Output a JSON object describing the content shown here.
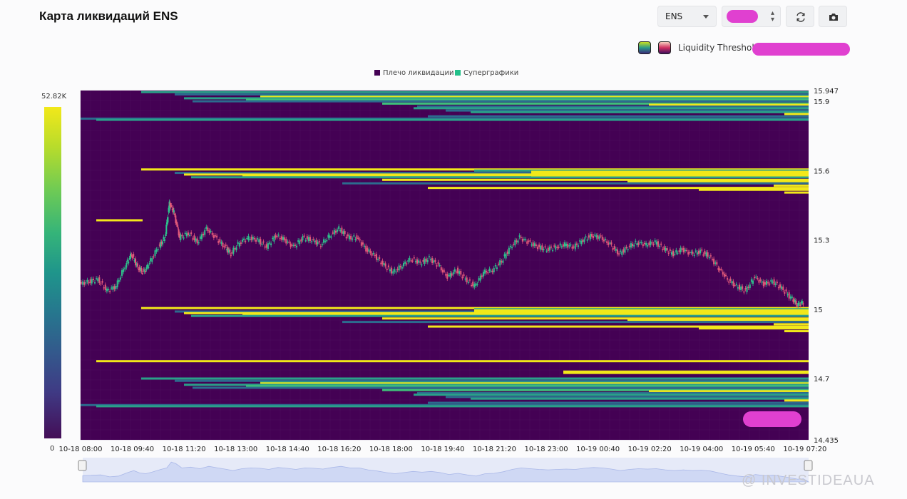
{
  "header": {
    "title": "Карта ликвидаций ENS",
    "symbol_select": "ENS",
    "refresh_icon": "refresh-icon",
    "camera_icon": "camera-icon"
  },
  "legend_panel": {
    "threshold_label": "Liquidity Threshold"
  },
  "colorbar": {
    "max_label": "52.82K",
    "min_label": "0"
  },
  "watermark": "@ INVESTIDEAUA",
  "colors": {
    "background": "#440154",
    "grid": "#56246b",
    "up": "#2ec28c",
    "down": "#e35a7a",
    "high": "#f2e81a",
    "mid": "#2aa089",
    "lowmid": "#2c6b8e"
  },
  "chart_data": {
    "type": "heatmap",
    "legend": [
      {
        "name": "Плечо ликвидации",
        "color": "#440154"
      },
      {
        "name": "Суперграфики",
        "color": "#22c08a"
      }
    ],
    "x_ticks": [
      "10-18 08:00",
      "10-18 09:40",
      "10-18 11:20",
      "10-18 13:00",
      "10-18 14:40",
      "10-18 16:20",
      "10-18 18:00",
      "10-18 19:40",
      "10-18 21:20",
      "10-18 23:00",
      "10-19 00:40",
      "10-19 02:20",
      "10-19 04:00",
      "10-19 05:40",
      "10-19 07:20"
    ],
    "y_ticks": [
      "15.947",
      "15.9",
      "15.6",
      "15.3",
      "15",
      "14.7",
      "14.435"
    ],
    "y_tick_values": [
      15.947,
      15.9,
      15.6,
      15.3,
      15.0,
      14.7,
      14.435
    ],
    "ylim": [
      14.435,
      15.947
    ],
    "x_range_hours": [
      0,
      24.17
    ],
    "price_path": [
      [
        0,
        15.11
      ],
      [
        0.3,
        15.12
      ],
      [
        0.6,
        15.13
      ],
      [
        0.9,
        15.08
      ],
      [
        1.2,
        15.1
      ],
      [
        1.5,
        15.19
      ],
      [
        1.7,
        15.24
      ],
      [
        1.9,
        15.18
      ],
      [
        2.1,
        15.16
      ],
      [
        2.3,
        15.2
      ],
      [
        2.6,
        15.27
      ],
      [
        2.8,
        15.31
      ],
      [
        2.95,
        15.46
      ],
      [
        3.1,
        15.42
      ],
      [
        3.3,
        15.31
      ],
      [
        3.6,
        15.33
      ],
      [
        3.9,
        15.29
      ],
      [
        4.2,
        15.35
      ],
      [
        4.5,
        15.31
      ],
      [
        4.8,
        15.27
      ],
      [
        5.0,
        15.24
      ],
      [
        5.3,
        15.29
      ],
      [
        5.6,
        15.31
      ],
      [
        5.9,
        15.3
      ],
      [
        6.2,
        15.27
      ],
      [
        6.5,
        15.32
      ],
      [
        6.8,
        15.3
      ],
      [
        7.1,
        15.27
      ],
      [
        7.4,
        15.31
      ],
      [
        7.7,
        15.3
      ],
      [
        8.0,
        15.28
      ],
      [
        8.3,
        15.32
      ],
      [
        8.6,
        15.35
      ],
      [
        8.9,
        15.31
      ],
      [
        9.2,
        15.31
      ],
      [
        9.5,
        15.26
      ],
      [
        9.8,
        15.23
      ],
      [
        10.1,
        15.19
      ],
      [
        10.4,
        15.16
      ],
      [
        10.7,
        15.19
      ],
      [
        11.0,
        15.22
      ],
      [
        11.3,
        15.2
      ],
      [
        11.6,
        15.22
      ],
      [
        11.9,
        15.19
      ],
      [
        12.2,
        15.14
      ],
      [
        12.5,
        15.17
      ],
      [
        12.8,
        15.13
      ],
      [
        13.1,
        15.1
      ],
      [
        13.4,
        15.16
      ],
      [
        13.7,
        15.17
      ],
      [
        14.0,
        15.21
      ],
      [
        14.3,
        15.27
      ],
      [
        14.6,
        15.31
      ],
      [
        14.9,
        15.29
      ],
      [
        15.2,
        15.27
      ],
      [
        15.5,
        15.26
      ],
      [
        15.8,
        15.27
      ],
      [
        16.1,
        15.28
      ],
      [
        16.4,
        15.27
      ],
      [
        16.7,
        15.3
      ],
      [
        17.0,
        15.32
      ],
      [
        17.3,
        15.31
      ],
      [
        17.6,
        15.28
      ],
      [
        17.9,
        15.24
      ],
      [
        18.2,
        15.27
      ],
      [
        18.5,
        15.29
      ],
      [
        18.8,
        15.28
      ],
      [
        19.1,
        15.29
      ],
      [
        19.4,
        15.26
      ],
      [
        19.7,
        15.24
      ],
      [
        20.0,
        15.26
      ],
      [
        20.3,
        15.24
      ],
      [
        20.6,
        15.25
      ],
      [
        20.9,
        15.23
      ],
      [
        21.2,
        15.18
      ],
      [
        21.5,
        15.13
      ],
      [
        21.8,
        15.1
      ],
      [
        22.1,
        15.08
      ],
      [
        22.4,
        15.14
      ],
      [
        22.7,
        15.11
      ],
      [
        23.0,
        15.12
      ],
      [
        23.3,
        15.09
      ],
      [
        23.6,
        15.05
      ],
      [
        23.8,
        15.02
      ],
      [
        24.0,
        15.03
      ]
    ]
  }
}
